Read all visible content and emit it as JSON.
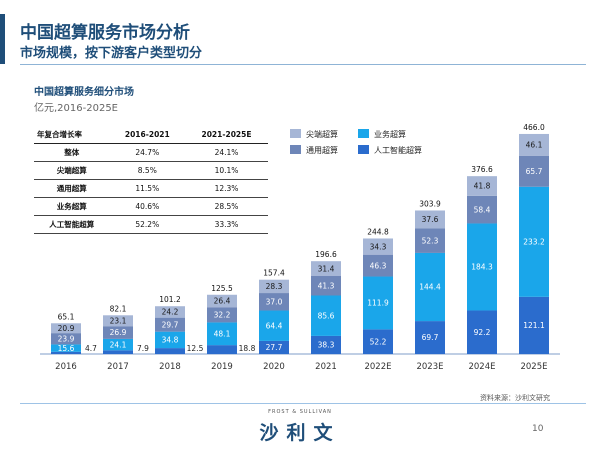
{
  "header": {
    "title": "中国超算服务市场分析",
    "subtitle": "市场规模，按下游客户类型切分"
  },
  "chart_data": {
    "type": "bar",
    "stacked": true,
    "title": "中国超算服务细分市场",
    "unit": "亿元,2016-2025E",
    "categories": [
      "2016",
      "2017",
      "2018",
      "2019",
      "2020",
      "2021",
      "2022E",
      "2023E",
      "2024E",
      "2025E"
    ],
    "series": [
      {
        "name": "人工智能超算",
        "color": "#2b6ccd",
        "values": [
          4.7,
          7.9,
          12.5,
          18.8,
          27.7,
          38.3,
          52.2,
          69.7,
          92.2,
          121.1
        ]
      },
      {
        "name": "业务超算",
        "color": "#1aa6ea",
        "values": [
          15.6,
          24.1,
          34.8,
          48.1,
          64.4,
          85.6,
          111.9,
          144.4,
          184.3,
          233.2
        ]
      },
      {
        "name": "通用超算",
        "color": "#6e86b8",
        "values": [
          23.9,
          26.9,
          29.7,
          32.2,
          37.0,
          41.3,
          46.3,
          52.3,
          58.4,
          65.7
        ]
      },
      {
        "name": "尖端超算",
        "color": "#a6b6d6",
        "values": [
          20.9,
          23.1,
          24.2,
          26.4,
          28.3,
          31.4,
          34.3,
          37.6,
          41.8,
          46.1
        ]
      }
    ],
    "totals": [
      65.1,
      82.1,
      101.2,
      125.5,
      157.4,
      196.6,
      244.8,
      303.9,
      376.6,
      466.0
    ],
    "legend_order": [
      "尖端超算",
      "业务超算",
      "通用超算",
      "人工智能超算"
    ],
    "ylim": [
      0,
      466.0
    ],
    "grid": false,
    "legend_position": "top"
  },
  "cagr_table": {
    "header": [
      "年复合增长率",
      "2016-2021",
      "2021-2025E"
    ],
    "rows": [
      [
        "整体",
        "24.7%",
        "24.1%"
      ],
      [
        "尖端超算",
        "8.5%",
        "10.1%"
      ],
      [
        "通用超算",
        "11.5%",
        "12.3%"
      ],
      [
        "业务超算",
        "40.6%",
        "28.5%"
      ],
      [
        "人工智能超算",
        "52.2%",
        "33.3%"
      ]
    ]
  },
  "footer": {
    "source": "资料来源：沙利文研究",
    "logo_en": "FROST & SULLIVAN",
    "logo_cn": "沙利文",
    "page_number": "10"
  }
}
